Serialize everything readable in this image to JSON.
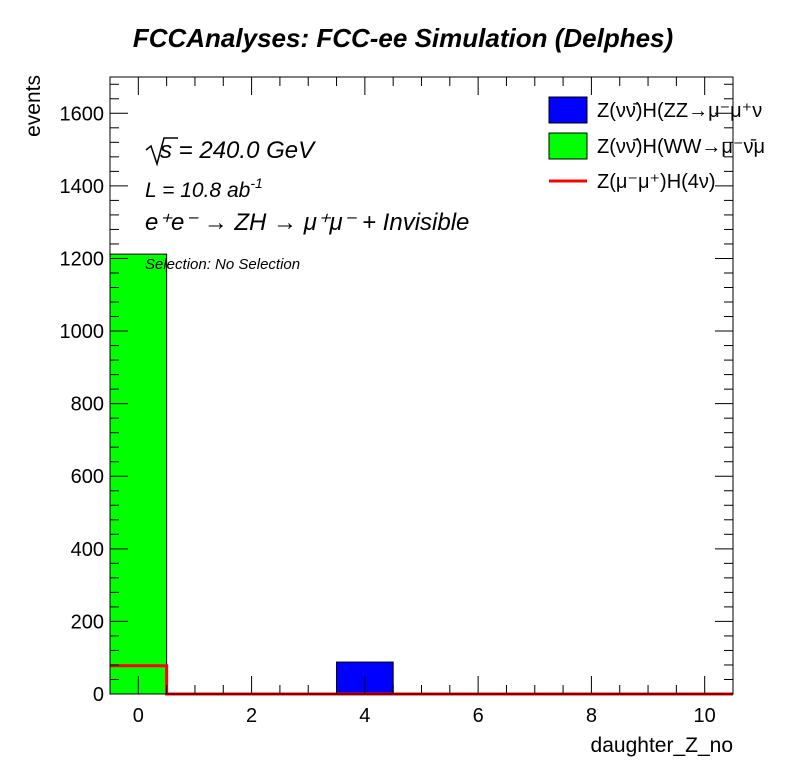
{
  "chart_data": {
    "type": "bar",
    "title": "FCCAnalyses: FCC-ee Simulation (Delphes)",
    "xlabel": "daughter_Z_no",
    "ylabel": "events",
    "xlim": [
      -0.5,
      10.5
    ],
    "ylim": [
      0,
      1700
    ],
    "x_ticks": [
      0,
      2,
      4,
      6,
      8,
      10
    ],
    "y_ticks": [
      0,
      200,
      400,
      600,
      800,
      1000,
      1200,
      1400,
      1600
    ],
    "x_tick_labels": [
      "0",
      "2",
      "4",
      "6",
      "8",
      "10"
    ],
    "y_tick_labels": [
      "0",
      "200",
      "400",
      "600",
      "800",
      "1000",
      "1200",
      "1400",
      "1600"
    ],
    "bin_width": 1,
    "legend_position": "top-right",
    "grid": false,
    "annotations": {
      "sqrt_s": "s = 240.0 GeV",
      "lumi_main": "L = 10.8 ab",
      "lumi_exp": "-1",
      "process": "e⁺e⁻ → ZH → μ⁺μ⁻ + Invisible",
      "selection": "Selection: No Selection"
    },
    "series": [
      {
        "name": "Z(νν̄)H(ZZ→μ⁻μ⁺ν",
        "kind": "filled",
        "color": "#0000ff",
        "points": [
          {
            "x": 4,
            "y": 88
          }
        ]
      },
      {
        "name": "Z(νν̄)H(WW→μ⁻ν̄μ",
        "kind": "filled",
        "color": "#00ff00",
        "points": [
          {
            "x": 0,
            "y": 1212
          }
        ]
      },
      {
        "name": "Z(μ⁻μ⁺)H(4ν)",
        "kind": "line",
        "color": "#ff0000",
        "points": [
          {
            "x": 0,
            "y": 78
          }
        ]
      }
    ]
  }
}
